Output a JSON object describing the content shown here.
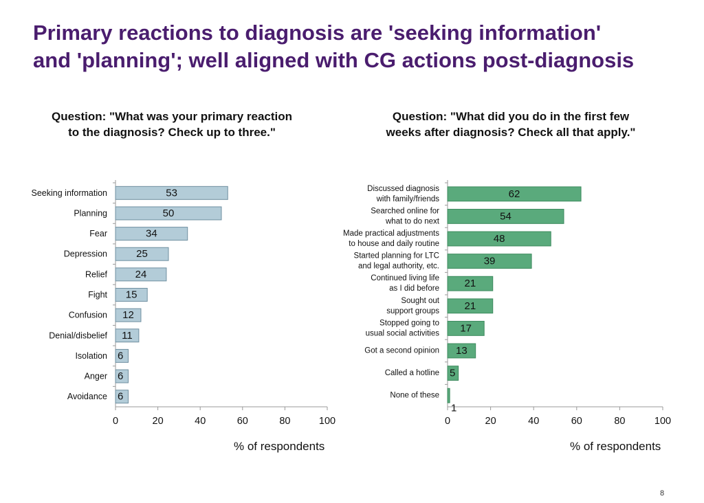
{
  "title": {
    "line1": "Primary reactions to diagnosis are 'seeking information'",
    "line2": "and 'planning'; well aligned with CG actions post-diagnosis"
  },
  "page_number": "8",
  "chart_data": [
    {
      "type": "bar",
      "orientation": "horizontal",
      "title_lines": [
        "Question: \"What was your primary reaction",
        "to the diagnosis? Check up to three.\""
      ],
      "categories": [
        [
          "Seeking information"
        ],
        [
          "Planning"
        ],
        [
          "Fear"
        ],
        [
          "Depression"
        ],
        [
          "Relief"
        ],
        [
          "Fight"
        ],
        [
          "Confusion"
        ],
        [
          "Denial/disbelief"
        ],
        [
          "Isolation"
        ],
        [
          "Anger"
        ],
        [
          "Avoidance"
        ]
      ],
      "values": [
        53,
        50,
        34,
        25,
        24,
        15,
        12,
        11,
        6,
        6,
        6
      ],
      "xlabel": "% of respondents",
      "xlim": [
        0,
        100
      ],
      "xticks": [
        0,
        20,
        40,
        60,
        80,
        100
      ],
      "color": "#b3ccd8",
      "edge_color": "#6f8fa0"
    },
    {
      "type": "bar",
      "orientation": "horizontal",
      "title_lines": [
        "Question: \"What did you do in the first few",
        "weeks after diagnosis? Check all that apply.\""
      ],
      "categories": [
        [
          "Discussed diagnosis",
          "with family/friends"
        ],
        [
          "Searched online for",
          "what to do next"
        ],
        [
          "Made practical adjustments",
          "to house and daily routine"
        ],
        [
          "Started planning for LTC",
          "and legal authority, etc."
        ],
        [
          "Continued living life",
          "as I did before"
        ],
        [
          "Sought out",
          "support groups"
        ],
        [
          "Stopped going to",
          "usual social activities"
        ],
        [
          "Got a second opinion"
        ],
        [
          "Called a hotline"
        ],
        [
          "None of these"
        ]
      ],
      "values": [
        62,
        54,
        48,
        39,
        21,
        21,
        17,
        13,
        5,
        1
      ],
      "xlabel": "% of respondents",
      "xlim": [
        0,
        100
      ],
      "xticks": [
        0,
        20,
        40,
        60,
        80,
        100
      ],
      "color": "#5aaa7c",
      "edge_color": "#3d8a5e"
    }
  ]
}
